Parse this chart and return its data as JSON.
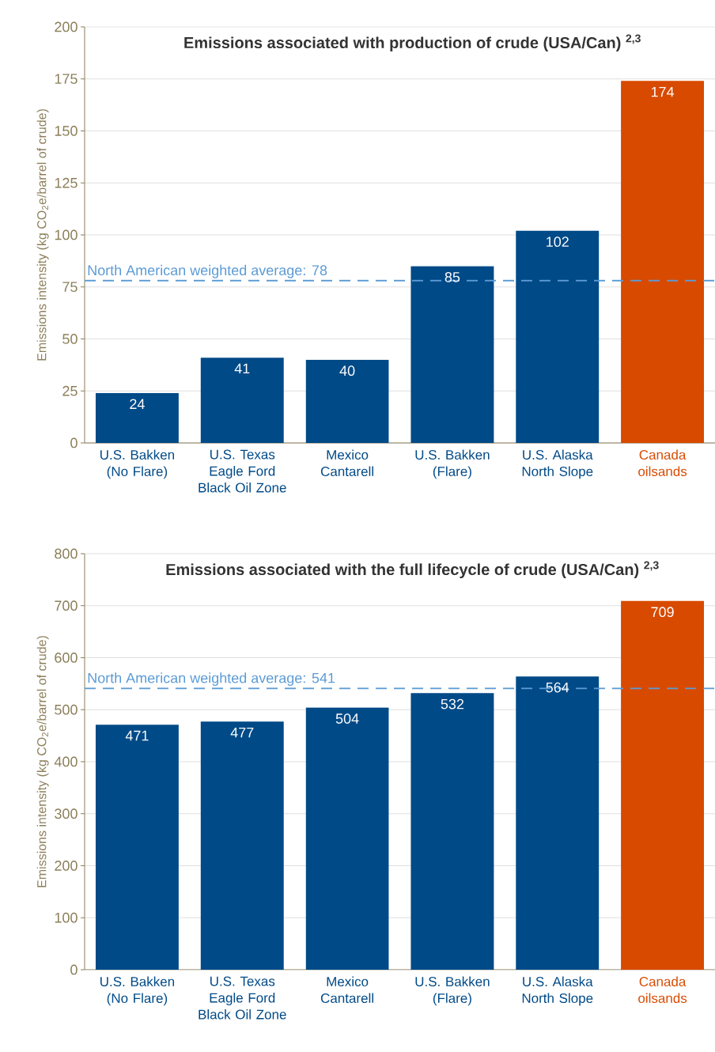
{
  "chart_data": [
    {
      "type": "bar",
      "title": "Emissions associated with production of crude (USA/Can) $^{2,3}$",
      "ylabel": "Emissions intensity (kg CO$_{2}$e/barrel of crude)",
      "categories": [
        "U.S. Bakken (No Flare)",
        "U.S. Texas Eagle Ford Black Oil Zone",
        "Mexico Cantarell",
        "U.S. Bakken (Flare)",
        "U.S. Alaska North Slope",
        "Canada oilsands"
      ],
      "values": [
        24,
        41,
        40,
        85,
        102,
        174
      ],
      "colors": [
        "#004a87",
        "#004a87",
        "#004a87",
        "#004a87",
        "#004a87",
        "#d84a00"
      ],
      "ylim": [
        0,
        200
      ],
      "yticks": [
        0,
        25,
        50,
        75,
        100,
        125,
        150,
        175,
        200
      ],
      "grid": "y",
      "data_labels": true,
      "ref_lines": [
        {
          "axis": "y",
          "value": 78,
          "label": "North American weighted average: 78",
          "color": "#5b9bd5",
          "line_style": "dashed"
        }
      ]
    },
    {
      "type": "bar",
      "title": "Emissions associated with the full lifecycle of crude (USA/Can) $^{2,3}$",
      "ylabel": "Emissions intensity (kg CO$_{2}$e/barrel of crude)",
      "categories": [
        "U.S. Bakken (No Flare)",
        "U.S. Texas Eagle Ford Black Oil Zone",
        "Mexico Cantarell",
        "U.S. Bakken (Flare)",
        "U.S. Alaska North Slope",
        "Canada oilsands"
      ],
      "values": [
        471,
        477,
        504,
        532,
        564,
        709
      ],
      "colors": [
        "#004a87",
        "#004a87",
        "#004a87",
        "#004a87",
        "#004a87",
        "#d84a00"
      ],
      "ylim": [
        0,
        800
      ],
      "yticks": [
        0,
        100,
        200,
        300,
        400,
        500,
        600,
        700,
        800
      ],
      "grid": "y",
      "data_labels": true,
      "ref_lines": [
        {
          "axis": "y",
          "value": 541,
          "label": "North American weighted average: 541",
          "color": "#5b9bd5",
          "line_style": "dashed"
        }
      ]
    }
  ]
}
